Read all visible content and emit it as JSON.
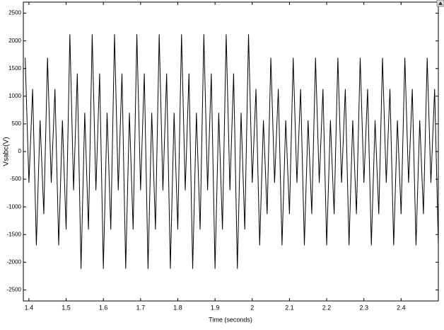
{
  "chart_data": {
    "type": "line",
    "xlabel": "Time (seconds)",
    "ylabel": "Vsabc(V)",
    "x": [
      1.39,
      1.4,
      1.41,
      1.42,
      1.43,
      1.44,
      1.45,
      1.46,
      1.47,
      1.48,
      1.49,
      1.5,
      1.51,
      1.52,
      1.53,
      1.54,
      1.55,
      1.56,
      1.57,
      1.58,
      1.59,
      1.6,
      1.61,
      1.62,
      1.63,
      1.64,
      1.65,
      1.66,
      1.67,
      1.68,
      1.69,
      1.7,
      1.71,
      1.72,
      1.73,
      1.74,
      1.75,
      1.76,
      1.77,
      1.78,
      1.79,
      1.8,
      1.81,
      1.82,
      1.83,
      1.84,
      1.85,
      1.86,
      1.87,
      1.88,
      1.89,
      1.9,
      1.91,
      1.92,
      1.93,
      1.94,
      1.95,
      1.96,
      1.97,
      1.98,
      1.99,
      2.0,
      2.01,
      2.02,
      2.03,
      2.04,
      2.05,
      2.06,
      2.07,
      2.08,
      2.09,
      2.1,
      2.11,
      2.12,
      2.13,
      2.14,
      2.15,
      2.16,
      2.17,
      2.18,
      2.19,
      2.2,
      2.21,
      2.22,
      2.23,
      2.24,
      2.25,
      2.26,
      2.27,
      2.28,
      2.29,
      2.3,
      2.31,
      2.32,
      2.33,
      2.34,
      2.35,
      2.36,
      2.37,
      2.38,
      2.39,
      2.4,
      2.41,
      2.42,
      2.43,
      2.44,
      2.45,
      2.46,
      2.47,
      2.48,
      2.49,
      2.5
    ],
    "values": [
      1695,
      -565,
      1130,
      -1695,
      565,
      -1130,
      1695,
      -565,
      1130,
      -1695,
      565,
      -1410,
      2120,
      -700,
      1410,
      -2120,
      700,
      -1410,
      2120,
      -700,
      1410,
      -2120,
      700,
      -1410,
      2120,
      -700,
      1410,
      -2120,
      700,
      -1410,
      2120,
      -700,
      1410,
      -2120,
      700,
      -1410,
      2120,
      -700,
      1410,
      -2120,
      700,
      -1410,
      2120,
      -700,
      1410,
      -2120,
      700,
      -1410,
      2120,
      -700,
      1410,
      -2120,
      700,
      -1410,
      2120,
      -700,
      1410,
      -2120,
      700,
      -1410,
      2120,
      -565,
      1130,
      -1695,
      565,
      -1130,
      1695,
      -565,
      1130,
      -1695,
      565,
      -1130,
      1695,
      -565,
      1130,
      -1695,
      565,
      -1130,
      1695,
      -565,
      1130,
      -1695,
      565,
      -1130,
      1695,
      -565,
      1130,
      -1695,
      565,
      -1130,
      1695,
      -565,
      1130,
      -1695,
      565,
      -1130,
      1695,
      -565,
      1130,
      -1695,
      565,
      -1130,
      1695,
      -565,
      1130,
      -1695,
      565,
      -1130,
      1695,
      -565,
      1130,
      -1695
    ],
    "color": "#000000",
    "xlim": [
      1.385,
      2.5
    ],
    "xticks": [
      1.4,
      1.5,
      1.6,
      1.7,
      1.8,
      1.9,
      2,
      2.1,
      2.2,
      2.3,
      2.4
    ],
    "ylim": [
      -2700,
      2700
    ],
    "yticks": [
      -2500,
      -2000,
      -1500,
      -1000,
      -500,
      0,
      500,
      1000,
      1500,
      2000,
      2500
    ],
    "grid": false
  }
}
